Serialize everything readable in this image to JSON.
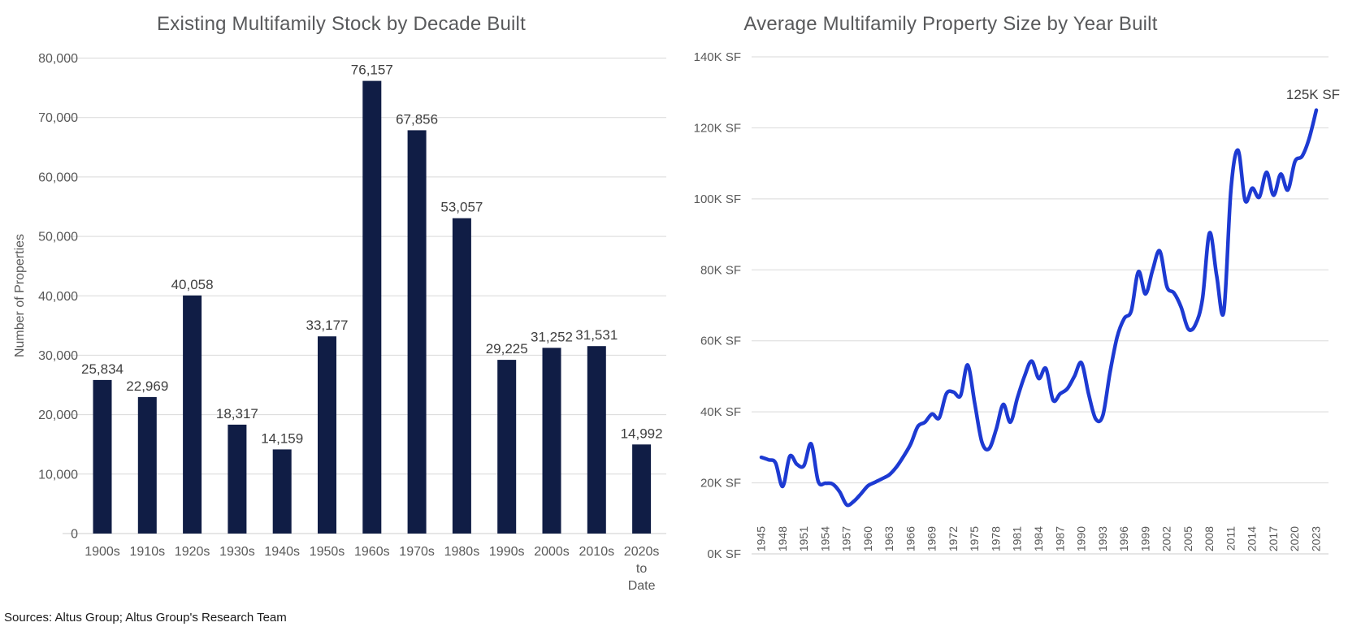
{
  "sources_note": "Sources: Altus Group; Altus Group's Research Team",
  "colors": {
    "bar_fill": "#101d45",
    "line_stroke": "#1d3ad2",
    "gridline": "#d9d9d9",
    "axis_text": "#595959",
    "title_text": "#58595b",
    "value_label_text": "#3f3f3f"
  },
  "chart_data": [
    {
      "type": "bar",
      "title": "Existing Multifamily Stock by Decade Built",
      "xlabel": "",
      "ylabel": "Number of Properties",
      "categories": [
        "1900s",
        "1910s",
        "1920s",
        "1930s",
        "1940s",
        "1950s",
        "1960s",
        "1970s",
        "1980s",
        "1990s",
        "2000s",
        "2010s",
        "2020s to Date"
      ],
      "values": [
        25834,
        22969,
        40058,
        18317,
        14159,
        33177,
        76157,
        67856,
        53057,
        29225,
        31252,
        31531,
        14992
      ],
      "value_labels": [
        "25,834",
        "22,969",
        "40,058",
        "18,317",
        "14,159",
        "33,177",
        "76,157",
        "67,856",
        "53,057",
        "29,225",
        "31,252",
        "31,531",
        "14,992"
      ],
      "ylim": [
        0,
        80000
      ],
      "ytick_interval": 10000,
      "ytick_labels": [
        "0",
        "10,000",
        "20,000",
        "30,000",
        "40,000",
        "50,000",
        "60,000",
        "70,000",
        "80,000"
      ],
      "grid": true,
      "legend": "none"
    },
    {
      "type": "line",
      "title": "Average Multifamily Property Size by Year Built",
      "xlabel": "",
      "ylabel": "",
      "unit": "K SF",
      "x": [
        1945,
        1946,
        1947,
        1948,
        1949,
        1950,
        1951,
        1952,
        1953,
        1954,
        1955,
        1956,
        1957,
        1958,
        1959,
        1960,
        1961,
        1962,
        1963,
        1964,
        1965,
        1966,
        1967,
        1968,
        1969,
        1970,
        1971,
        1972,
        1973,
        1974,
        1975,
        1976,
        1977,
        1978,
        1979,
        1980,
        1981,
        1982,
        1983,
        1984,
        1985,
        1986,
        1987,
        1988,
        1989,
        1990,
        1991,
        1992,
        1993,
        1994,
        1995,
        1996,
        1997,
        1998,
        1999,
        2000,
        2001,
        2002,
        2003,
        2004,
        2005,
        2006,
        2007,
        2008,
        2009,
        2010,
        2011,
        2012,
        2013,
        2014,
        2015,
        2016,
        2017,
        2018,
        2019,
        2020,
        2021,
        2022,
        2023
      ],
      "values": [
        27.2,
        26.5,
        25.6,
        19,
        27.5,
        25.2,
        24.9,
        31,
        20.4,
        19.9,
        19.7,
        17.5,
        13.8,
        14.8,
        16.9,
        19.2,
        20.2,
        21.2,
        22.3,
        24.5,
        27.5,
        31,
        35.9,
        37.1,
        39.4,
        38.3,
        45.1,
        45.6,
        44.6,
        53.2,
        42.3,
        31.5,
        29.6,
        35,
        42.1,
        37.1,
        44,
        50.1,
        54.3,
        49.4,
        52.2,
        43.3,
        45.1,
        46.5,
        50,
        53.8,
        45,
        38,
        39,
        51,
        61,
        66.3,
        68.5,
        79.5,
        73.2,
        80,
        85.3,
        75.3,
        73.5,
        69.5,
        63.4,
        64.5,
        71.8,
        90.4,
        78.3,
        68.2,
        102.5,
        113.7,
        99.5,
        103,
        100.5,
        107.5,
        101,
        107,
        102.5,
        110.5,
        112,
        117,
        125
      ],
      "ylim": [
        0,
        140
      ],
      "ytick_labels": [
        "0K SF",
        "20K SF",
        "40K SF",
        "60K SF",
        "80K SF",
        "100K SF",
        "120K SF",
        "140K SF"
      ],
      "xtick_labels": [
        "1945",
        "1948",
        "1951",
        "1954",
        "1957",
        "1960",
        "1963",
        "1966",
        "1969",
        "1972",
        "1975",
        "1978",
        "1981",
        "1984",
        "1987",
        "1990",
        "1993",
        "1996",
        "1999",
        "2002",
        "2005",
        "2008",
        "2011",
        "2014",
        "2017",
        "2020",
        "2023"
      ],
      "annotation": "125K SF",
      "grid": true,
      "legend": "none"
    }
  ]
}
